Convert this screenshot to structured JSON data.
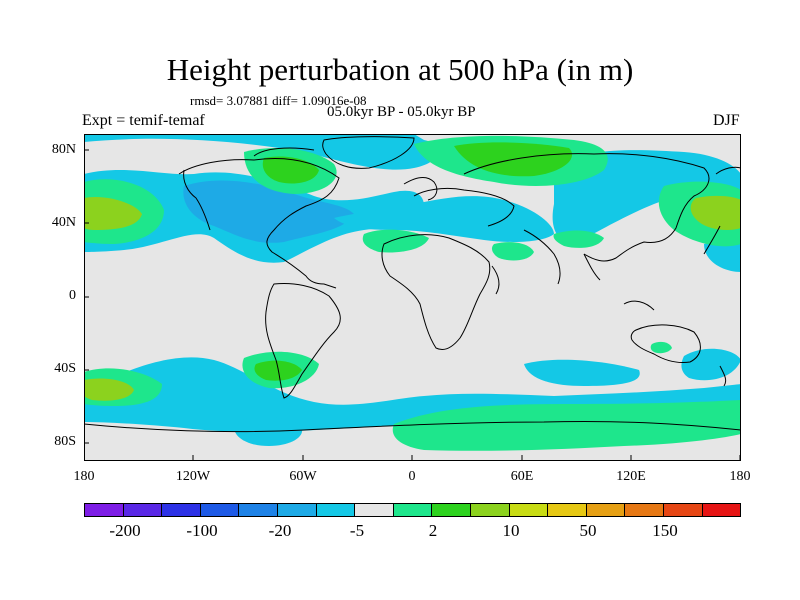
{
  "title": "Height perturbation at 500 hPa (in m)",
  "stats": "rmsd= 3.07881 diff= 1.09016e-08",
  "period": "05.0kyr BP - 05.0kyr BP",
  "experiment": "Expt = temif-temaf",
  "season": "DJF",
  "lat_labels": [
    "80N",
    "40N",
    "0",
    "40S",
    "80S"
  ],
  "lon_labels": [
    "180",
    "120W",
    "60W",
    "0",
    "60E",
    "120E",
    "180"
  ],
  "colorbar": {
    "labels": [
      "-200",
      "-100",
      "-20",
      "-5",
      "2",
      "10",
      "50",
      "150"
    ],
    "colors": [
      "#7e1ee6",
      "#5a28e6",
      "#2d32e6",
      "#1e5ae6",
      "#1e82e6",
      "#1eaae6",
      "#14c8e6",
      "#e6e6e6",
      "#1ee68c",
      "#2dd21e",
      "#8cd21e",
      "#c8dc14",
      "#e6c814",
      "#e6a014",
      "#e67814",
      "#e64614",
      "#e61414"
    ]
  },
  "colors": {
    "background_zero": "#e6e6e6",
    "negative_light": "#14c8e6",
    "negative_mid": "#1eaae6",
    "positive_light": "#1ee68c",
    "positive_mid": "#2dd21e",
    "positive_high": "#8cd21e"
  }
}
